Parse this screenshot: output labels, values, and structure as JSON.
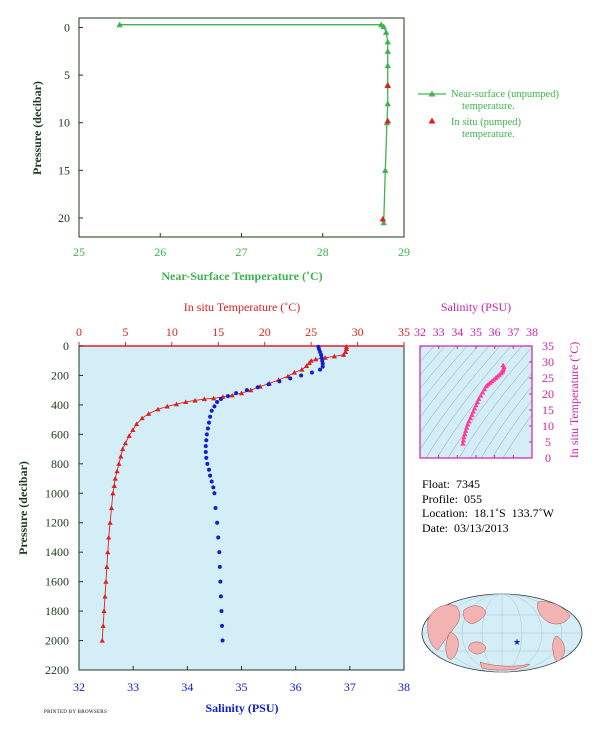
{
  "colors": {
    "green": "#3fb34f",
    "red": "#e0201e",
    "blue": "#1020d0",
    "magenta": "#cc22aa",
    "pink": "#ff3a9a",
    "axis_dark": "#1e3a1e",
    "panel_bg": "#d3eef7"
  },
  "chart_data": [
    {
      "type": "line",
      "xlabel": "Near-Surface Temperature (˚C)",
      "ylabel": "Pressure (decibar)",
      "xlim": [
        25,
        29
      ],
      "ylim": [
        22,
        -1
      ],
      "xticks": [
        "25",
        "26",
        "27",
        "28",
        "29"
      ],
      "yticks": [
        "0",
        "5",
        "10",
        "15",
        "20"
      ],
      "grid": false,
      "legend_position": "right",
      "series": [
        {
          "name": "Near-surface (unpumped) temperature.",
          "marker": "triangle",
          "points": [
            [
              25.5,
              -0.3
            ],
            [
              28.72,
              -0.3
            ],
            [
              28.75,
              -0.1
            ],
            [
              28.78,
              0.5
            ],
            [
              28.8,
              1.5
            ],
            [
              28.8,
              2.5
            ],
            [
              28.8,
              4
            ],
            [
              28.8,
              6
            ],
            [
              28.8,
              8
            ],
            [
              28.79,
              10
            ],
            [
              28.77,
              15
            ],
            [
              28.75,
              20.5
            ]
          ]
        },
        {
          "name": "In situ (pumped) temperature.",
          "marker": "triangle",
          "points": [
            [
              28.8,
              6.1
            ],
            [
              28.8,
              9.8
            ],
            [
              28.74,
              20.1
            ]
          ]
        }
      ]
    },
    {
      "type": "scatter",
      "ylabel": "Pressure (decibar)",
      "ylim": [
        2200,
        0
      ],
      "yticks": [
        "0",
        "200",
        "400",
        "600",
        "800",
        "1000",
        "1200",
        "1400",
        "1600",
        "1800",
        "2000",
        "2200"
      ],
      "x_bottom": {
        "label": "Salinity (PSU)",
        "range": [
          32,
          38
        ],
        "ticks": [
          "32",
          "33",
          "34",
          "35",
          "36",
          "37",
          "38"
        ]
      },
      "x_top": {
        "label": "In situ Temperature (˚C)",
        "range": [
          0,
          35
        ],
        "ticks": [
          "0",
          "5",
          "10",
          "15",
          "20",
          "25",
          "30",
          "35"
        ]
      },
      "series": [
        {
          "name": "In situ Temperature (˚C)",
          "marker": "triangle",
          "points": [
            [
              28.8,
              5
            ],
            [
              28.8,
              20
            ],
            [
              28.7,
              40
            ],
            [
              28.5,
              60
            ],
            [
              27.5,
              70
            ],
            [
              26.5,
              80
            ],
            [
              25.5,
              90
            ],
            [
              25.0,
              100
            ],
            [
              24.8,
              115
            ],
            [
              24.5,
              135
            ],
            [
              24.0,
              160
            ],
            [
              23.2,
              180
            ],
            [
              22.5,
              205
            ],
            [
              21.5,
              230
            ],
            [
              20.5,
              255
            ],
            [
              19.5,
              275
            ],
            [
              18.5,
              300
            ],
            [
              17.5,
              320
            ],
            [
              16.5,
              335
            ],
            [
              15.5,
              345
            ],
            [
              14.5,
              355
            ],
            [
              13.5,
              360
            ],
            [
              12.5,
              370
            ],
            [
              11.5,
              380
            ],
            [
              10.5,
              395
            ],
            [
              9.5,
              410
            ],
            [
              8.5,
              430
            ],
            [
              7.5,
              460
            ],
            [
              6.8,
              490
            ],
            [
              6.2,
              530
            ],
            [
              5.8,
              570
            ],
            [
              5.4,
              610
            ],
            [
              5.0,
              660
            ],
            [
              4.7,
              700
            ],
            [
              4.5,
              750
            ],
            [
              4.3,
              800
            ],
            [
              4.1,
              850
            ],
            [
              3.9,
              900
            ],
            [
              3.8,
              950
            ],
            [
              3.65,
              1000
            ],
            [
              3.5,
              1100
            ],
            [
              3.35,
              1200
            ],
            [
              3.2,
              1300
            ],
            [
              3.1,
              1400
            ],
            [
              3.0,
              1500
            ],
            [
              2.9,
              1600
            ],
            [
              2.8,
              1700
            ],
            [
              2.7,
              1800
            ],
            [
              2.6,
              1900
            ],
            [
              2.5,
              2000
            ]
          ]
        },
        {
          "name": "Salinity (PSU)",
          "marker": "circle",
          "points": [
            [
              36.42,
              5
            ],
            [
              36.43,
              20
            ],
            [
              36.45,
              40
            ],
            [
              36.47,
              60
            ],
            [
              36.48,
              80
            ],
            [
              36.49,
              100
            ],
            [
              36.5,
              120
            ],
            [
              36.5,
              140
            ],
            [
              36.45,
              160
            ],
            [
              36.3,
              180
            ],
            [
              36.1,
              200
            ],
            [
              35.9,
              220
            ],
            [
              35.7,
              240
            ],
            [
              35.5,
              260
            ],
            [
              35.3,
              280
            ],
            [
              35.1,
              300
            ],
            [
              34.9,
              320
            ],
            [
              34.75,
              340
            ],
            [
              34.62,
              360
            ],
            [
              34.55,
              380
            ],
            [
              34.5,
              410
            ],
            [
              34.45,
              440
            ],
            [
              34.42,
              480
            ],
            [
              34.4,
              520
            ],
            [
              34.38,
              560
            ],
            [
              34.36,
              600
            ],
            [
              34.35,
              640
            ],
            [
              34.34,
              680
            ],
            [
              34.34,
              720
            ],
            [
              34.35,
              760
            ],
            [
              34.37,
              800
            ],
            [
              34.4,
              840
            ],
            [
              34.42,
              880
            ],
            [
              34.45,
              920
            ],
            [
              34.48,
              960
            ],
            [
              34.5,
              1000
            ],
            [
              34.52,
              1100
            ],
            [
              34.55,
              1200
            ],
            [
              34.57,
              1300
            ],
            [
              34.59,
              1400
            ],
            [
              34.6,
              1500
            ],
            [
              34.61,
              1600
            ],
            [
              34.62,
              1700
            ],
            [
              34.63,
              1800
            ],
            [
              34.64,
              1900
            ],
            [
              34.65,
              2000
            ]
          ]
        }
      ]
    },
    {
      "type": "scatter",
      "title": "Salinity (PSU)",
      "ylabel": "In situ Temperature (˚C)",
      "xlim": [
        32,
        38
      ],
      "ylim": [
        0,
        35
      ],
      "xticks": [
        "32",
        "33",
        "34",
        "35",
        "36",
        "37",
        "38"
      ],
      "yticks": [
        "0",
        "5",
        "10",
        "15",
        "20",
        "25",
        "30",
        "35"
      ],
      "points": [
        [
          34.3,
          4.5
        ],
        [
          34.32,
          5.5
        ],
        [
          34.35,
          6.5
        ],
        [
          34.4,
          7.5
        ],
        [
          34.45,
          8.5
        ],
        [
          34.5,
          9.5
        ],
        [
          34.55,
          10.5
        ],
        [
          34.62,
          11.5
        ],
        [
          34.7,
          12.5
        ],
        [
          34.78,
          13.5
        ],
        [
          34.85,
          14.5
        ],
        [
          34.92,
          15.5
        ],
        [
          35.0,
          16.5
        ],
        [
          35.08,
          17.5
        ],
        [
          35.15,
          18.5
        ],
        [
          35.25,
          19.5
        ],
        [
          35.35,
          20.5
        ],
        [
          35.45,
          21.5
        ],
        [
          35.55,
          22.5
        ],
        [
          35.65,
          23
        ],
        [
          35.75,
          23.5
        ],
        [
          35.85,
          24
        ],
        [
          35.95,
          24.5
        ],
        [
          36.05,
          25
        ],
        [
          36.15,
          25.5
        ],
        [
          36.25,
          26
        ],
        [
          36.35,
          26.5
        ],
        [
          36.42,
          27
        ],
        [
          36.45,
          27.5
        ],
        [
          36.48,
          28
        ],
        [
          36.5,
          28.5
        ],
        [
          36.45,
          29
        ]
      ]
    }
  ],
  "info": {
    "float_label": "Float:",
    "float_value": "7345",
    "profile_label": "Profile:",
    "profile_value": "055",
    "location_label": "Location:",
    "location_value": "18.1˚S  133.7˚W",
    "date_label": "Date:",
    "date_value": "03/13/2013"
  },
  "map": {
    "marker_icon": "star-icon",
    "marker_color": "#1020d0"
  },
  "footer_text": "PRINTED BY BROWSERS"
}
